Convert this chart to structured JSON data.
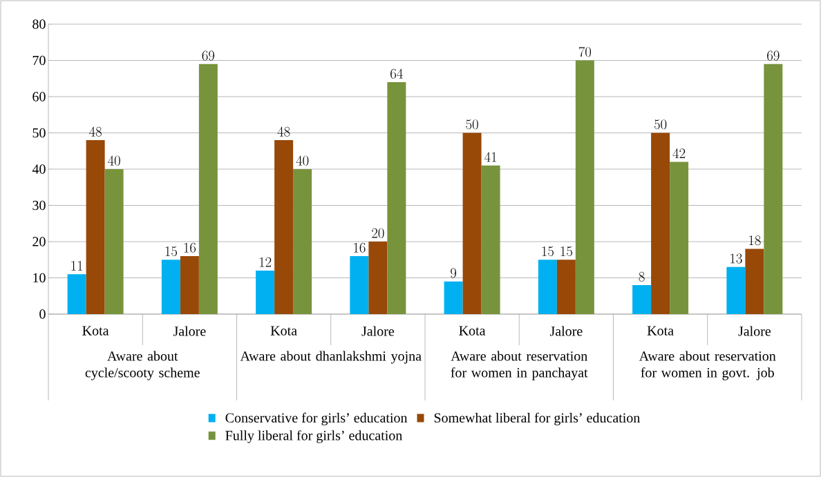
{
  "chart_data": {
    "type": "bar",
    "categories": [
      "Kota",
      "Jalore",
      "Kota",
      "Jalore",
      "Kota",
      "Jalore",
      "Kota",
      "Jalore"
    ],
    "series": [
      {
        "name": "Conservative for girls’ education",
        "color": "#00b0f0",
        "values": [
          11,
          15,
          12,
          16,
          9,
          15,
          8,
          13
        ]
      },
      {
        "name": "Somewhat liberal for girls’ education",
        "color": "#984807",
        "values": [
          48,
          16,
          48,
          20,
          50,
          15,
          50,
          18
        ]
      },
      {
        "name": "Fully liberal for girls’ education",
        "color": "#77933c",
        "values": [
          40,
          69,
          40,
          64,
          41,
          70,
          42,
          69
        ]
      }
    ],
    "annotations": [
      "Aware about cycle/scooty scheme",
      "Aware about dhanlakshmi yojna",
      "Aware about  reservation for women in panchayat",
      "Aware about  reservation for women in govt. job"
    ],
    "ylim": [
      0,
      80
    ],
    "yticks": [
      0,
      10,
      20,
      30,
      40,
      50,
      60,
      70,
      80
    ],
    "grid": "y",
    "legend": "bottom",
    "data_labels": true
  }
}
